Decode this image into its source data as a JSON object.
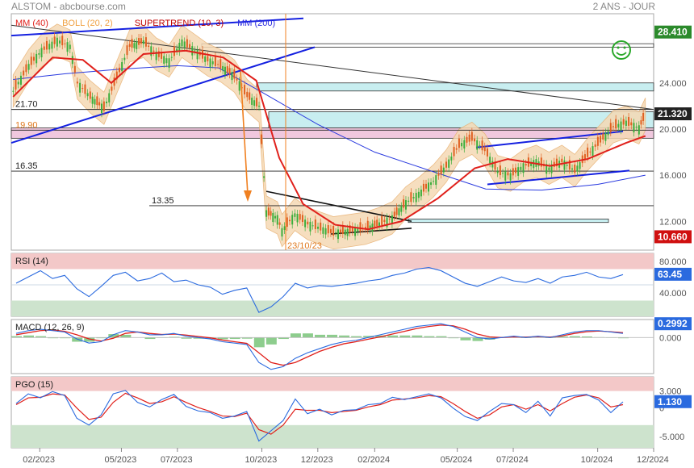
{
  "header": {
    "left": "ALSTOM - abcbourse.com",
    "right": "2 ANS - JOUR"
  },
  "legend": [
    {
      "text": "MM (40)",
      "color": "#e0201b"
    },
    {
      "text": "BOLL (20, 2)",
      "color": "#f0a040"
    },
    {
      "text": "SUPERTREND (10, 3)",
      "color": "#c00000"
    },
    {
      "text": "MM (200)",
      "color": "#2a2adf"
    }
  ],
  "colors": {
    "price_up": "#3cae3c",
    "price_down": "#e06020",
    "boll_fill": "#f5d9b5",
    "mm200": "#2a3adf",
    "mm40": "#e0201b",
    "trendline_blue": "#1420e0",
    "cyan_band": "#c8eef0",
    "pink_band": "#f0c8de",
    "rsi_red_zone": "#f3c8c8",
    "rsi_green_zone": "#cde3cd",
    "axis_tag_dark": "#222",
    "axis_tag_green": "#2b8a2b",
    "axis_tag_red": "#d01010",
    "indicator_blue": "#2a6adf",
    "indicator_red": "#e0201b",
    "macd_hist": "#70c070",
    "arrow": "#f08020",
    "smiley": "#2aa82a"
  },
  "chart_data": [
    {
      "type": "candlestick",
      "panel": "price",
      "x_range": [
        "2023-01-01",
        "2024-12-01"
      ],
      "ylim": [
        9.5,
        30
      ],
      "y_ticks": [
        12,
        16,
        20,
        24
      ],
      "y_tick_labels": [
        "12.000",
        "16.000",
        "20.000",
        "24.000"
      ],
      "x_ticks": [
        "2023-02-01",
        "2023-05-01",
        "2023-07-01",
        "2023-10-01",
        "2023-12-01",
        "2024-02-01",
        "2024-05-01",
        "2024-07-01",
        "2024-10-01",
        "2024-12-01"
      ],
      "x_tick_labels": [
        "02/2023",
        "05/2023",
        "07/2023",
        "10/2023",
        "12/2023",
        "02/2024",
        "05/2024",
        "07/2024",
        "10/2024",
        "12/2024"
      ],
      "close_series": [
        {
          "x": "2023-01-03",
          "y": 23.3
        },
        {
          "x": "2023-01-20",
          "y": 25.5
        },
        {
          "x": "2023-02-03",
          "y": 26.8
        },
        {
          "x": "2023-02-20",
          "y": 27.7
        },
        {
          "x": "2023-03-06",
          "y": 27.2
        },
        {
          "x": "2023-03-14",
          "y": 24.0
        },
        {
          "x": "2023-03-28",
          "y": 22.8
        },
        {
          "x": "2023-04-12",
          "y": 21.8
        },
        {
          "x": "2023-04-26",
          "y": 24.5
        },
        {
          "x": "2023-05-10",
          "y": 27.2
        },
        {
          "x": "2023-05-25",
          "y": 27.6
        },
        {
          "x": "2023-06-08",
          "y": 26.5
        },
        {
          "x": "2023-06-22",
          "y": 25.9
        },
        {
          "x": "2023-07-06",
          "y": 27.6
        },
        {
          "x": "2023-07-20",
          "y": 26.8
        },
        {
          "x": "2023-08-03",
          "y": 26.0
        },
        {
          "x": "2023-08-17",
          "y": 25.5
        },
        {
          "x": "2023-09-01",
          "y": 24.6
        },
        {
          "x": "2023-09-15",
          "y": 22.9
        },
        {
          "x": "2023-09-28",
          "y": 22.0
        },
        {
          "x": "2023-10-06",
          "y": 12.8
        },
        {
          "x": "2023-10-18",
          "y": 12.3
        },
        {
          "x": "2023-10-23",
          "y": 11.2
        },
        {
          "x": "2023-11-06",
          "y": 12.6
        },
        {
          "x": "2023-11-20",
          "y": 11.8
        },
        {
          "x": "2023-12-04",
          "y": 11.4
        },
        {
          "x": "2023-12-18",
          "y": 11.0
        },
        {
          "x": "2024-01-05",
          "y": 11.2
        },
        {
          "x": "2024-01-22",
          "y": 11.4
        },
        {
          "x": "2024-02-06",
          "y": 11.8
        },
        {
          "x": "2024-02-20",
          "y": 12.3
        },
        {
          "x": "2024-03-06",
          "y": 13.6
        },
        {
          "x": "2024-03-20",
          "y": 14.4
        },
        {
          "x": "2024-04-05",
          "y": 15.5
        },
        {
          "x": "2024-04-19",
          "y": 16.8
        },
        {
          "x": "2024-05-03",
          "y": 18.6
        },
        {
          "x": "2024-05-17",
          "y": 19.2
        },
        {
          "x": "2024-05-31",
          "y": 18.2
        },
        {
          "x": "2024-06-14",
          "y": 16.3
        },
        {
          "x": "2024-06-28",
          "y": 16.0
        },
        {
          "x": "2024-07-12",
          "y": 16.8
        },
        {
          "x": "2024-07-26",
          "y": 17.2
        },
        {
          "x": "2024-08-09",
          "y": 16.6
        },
        {
          "x": "2024-08-23",
          "y": 17.2
        },
        {
          "x": "2024-09-06",
          "y": 16.4
        },
        {
          "x": "2024-09-20",
          "y": 17.8
        },
        {
          "x": "2024-10-04",
          "y": 19.0
        },
        {
          "x": "2024-10-18",
          "y": 20.2
        },
        {
          "x": "2024-11-01",
          "y": 20.6
        },
        {
          "x": "2024-11-15",
          "y": 20.1
        },
        {
          "x": "2024-11-22",
          "y": 21.3
        }
      ],
      "mm200_series": [
        {
          "x": "2023-01-03",
          "y": 24.3
        },
        {
          "x": "2023-03-01",
          "y": 24.8
        },
        {
          "x": "2023-05-01",
          "y": 25.2
        },
        {
          "x": "2023-07-01",
          "y": 25.5
        },
        {
          "x": "2023-08-15",
          "y": 25.3
        },
        {
          "x": "2023-10-01",
          "y": 23.2
        },
        {
          "x": "2023-12-01",
          "y": 20.4
        },
        {
          "x": "2024-02-01",
          "y": 18.0
        },
        {
          "x": "2024-04-01",
          "y": 16.4
        },
        {
          "x": "2024-06-01",
          "y": 14.8
        },
        {
          "x": "2024-08-01",
          "y": 14.7
        },
        {
          "x": "2024-10-01",
          "y": 15.2
        },
        {
          "x": "2024-11-22",
          "y": 16.0
        }
      ],
      "mm40_series": [
        {
          "x": "2023-01-03",
          "y": 22.8
        },
        {
          "x": "2023-02-15",
          "y": 26.2
        },
        {
          "x": "2023-03-20",
          "y": 26.0
        },
        {
          "x": "2023-04-20",
          "y": 24.0
        },
        {
          "x": "2023-05-25",
          "y": 26.5
        },
        {
          "x": "2023-07-10",
          "y": 26.8
        },
        {
          "x": "2023-08-20",
          "y": 26.2
        },
        {
          "x": "2023-09-25",
          "y": 24.2
        },
        {
          "x": "2023-10-20",
          "y": 17.5
        },
        {
          "x": "2023-11-15",
          "y": 13.5
        },
        {
          "x": "2023-12-20",
          "y": 11.7
        },
        {
          "x": "2024-01-25",
          "y": 11.3
        },
        {
          "x": "2024-03-01",
          "y": 12.0
        },
        {
          "x": "2024-04-10",
          "y": 14.0
        },
        {
          "x": "2024-05-20",
          "y": 16.6
        },
        {
          "x": "2024-06-25",
          "y": 17.4
        },
        {
          "x": "2024-08-10",
          "y": 16.8
        },
        {
          "x": "2024-09-20",
          "y": 17.4
        },
        {
          "x": "2024-11-01",
          "y": 18.8
        },
        {
          "x": "2024-11-22",
          "y": 19.4
        }
      ],
      "horizontal_levels": [
        {
          "value": 21.7,
          "label": "21.70"
        },
        {
          "value": 19.9,
          "label": "19.90"
        },
        {
          "value": 16.35,
          "label": "16.35"
        },
        {
          "value": 13.35,
          "label": "13.35"
        }
      ],
      "annotations": [
        {
          "text": "23/10/23",
          "x": "2023-10-23"
        }
      ],
      "right_tags": [
        {
          "value": 28.41,
          "label": "28.410",
          "color": "#2b8a2b"
        },
        {
          "value": 21.32,
          "label": "21.320",
          "color": "#222"
        },
        {
          "value": 10.66,
          "label": "10.660",
          "color": "#d01010"
        }
      ]
    },
    {
      "type": "line",
      "panel": "rsi",
      "title": "RSI (14)",
      "ylim": [
        10,
        90
      ],
      "y_ticks": [
        40,
        80
      ],
      "y_tick_labels": [
        "40.000",
        "80.000"
      ],
      "zones": {
        "upper": 70,
        "lower": 30
      },
      "last_label": "63.45",
      "values": [
        52,
        60,
        68,
        58,
        62,
        45,
        35,
        48,
        62,
        66,
        55,
        58,
        65,
        54,
        56,
        50,
        47,
        38,
        43,
        46,
        15,
        22,
        35,
        52,
        46,
        49,
        48,
        50,
        52,
        55,
        57,
        62,
        65,
        70,
        72,
        68,
        60,
        52,
        48,
        54,
        60,
        55,
        53,
        58,
        52,
        60,
        62,
        66,
        60,
        58,
        63
      ]
    },
    {
      "type": "line",
      "panel": "macd",
      "title": "MACD (12, 26, 9)",
      "ylim": [
        -2.6,
        1.3
      ],
      "y_ticks": [
        0
      ],
      "y_tick_labels": [
        "0.000"
      ],
      "last_label": "0.2992",
      "macd": [
        0.3,
        0.5,
        0.6,
        0.5,
        0.4,
        -0.1,
        -0.4,
        -0.3,
        0.2,
        0.5,
        0.4,
        0.2,
        0.2,
        0.3,
        0.1,
        0.0,
        -0.1,
        -0.3,
        -0.4,
        -0.5,
        -1.8,
        -2.3,
        -2.1,
        -1.5,
        -1.1,
        -0.8,
        -0.5,
        -0.3,
        -0.2,
        0.0,
        0.2,
        0.4,
        0.6,
        0.8,
        0.9,
        1.0,
        0.8,
        0.4,
        0.0,
        -0.1,
        0.0,
        0.1,
        0.0,
        0.1,
        0.0,
        0.2,
        0.4,
        0.5,
        0.5,
        0.4,
        0.3
      ],
      "signal": [
        0.2,
        0.35,
        0.5,
        0.55,
        0.45,
        0.2,
        -0.1,
        -0.25,
        -0.05,
        0.3,
        0.4,
        0.3,
        0.22,
        0.25,
        0.18,
        0.08,
        -0.02,
        -0.18,
        -0.3,
        -0.42,
        -1.1,
        -1.8,
        -2.0,
        -1.8,
        -1.4,
        -1.0,
        -0.7,
        -0.45,
        -0.3,
        -0.12,
        0.05,
        0.25,
        0.45,
        0.65,
        0.8,
        0.9,
        0.85,
        0.6,
        0.25,
        0.05,
        0.0,
        0.05,
        0.03,
        0.07,
        0.03,
        0.12,
        0.3,
        0.42,
        0.47,
        0.42,
        0.35
      ]
    },
    {
      "type": "line",
      "panel": "pgo",
      "title": "PGO (15)",
      "ylim": [
        -7,
        5.5
      ],
      "y_ticks": [
        3,
        0,
        -5
      ],
      "y_tick_labels": [
        "3.000",
        "0",
        "-5.000"
      ],
      "zones": {
        "upper": 3,
        "lower": -3
      },
      "last_label": "1.130",
      "pgo": [
        0.8,
        2.5,
        1.8,
        2.9,
        2.2,
        -1.8,
        -3.0,
        -1.2,
        2.5,
        3.1,
        1.0,
        0.2,
        1.5,
        2.4,
        0.3,
        -0.5,
        -0.8,
        -1.8,
        -1.4,
        -0.6,
        -5.8,
        -4.0,
        -2.2,
        1.6,
        -1.0,
        -0.2,
        -1.2,
        -0.4,
        -0.3,
        0.6,
        0.8,
        1.9,
        1.5,
        2.0,
        2.5,
        1.8,
        0.0,
        -1.5,
        -2.2,
        -0.6,
        0.8,
        0.6,
        -0.8,
        1.2,
        -1.4,
        1.8,
        2.2,
        2.4,
        1.4,
        -0.8,
        1.1
      ],
      "pgo_signal": [
        0.6,
        1.8,
        1.9,
        2.5,
        2.3,
        0.0,
        -2.0,
        -1.6,
        1.0,
        2.6,
        1.8,
        0.8,
        1.1,
        2.0,
        1.0,
        0.1,
        -0.6,
        -1.4,
        -1.5,
        -0.9,
        -3.8,
        -4.6,
        -3.0,
        -0.2,
        -0.4,
        -0.4,
        -0.8,
        -0.6,
        -0.4,
        0.2,
        0.6,
        1.4,
        1.6,
        1.8,
        2.2,
        2.0,
        0.8,
        -0.6,
        -1.8,
        -1.2,
        0.2,
        0.6,
        -0.2,
        0.6,
        -0.5,
        0.8,
        1.9,
        2.3,
        1.8,
        0.2,
        0.6
      ]
    }
  ]
}
